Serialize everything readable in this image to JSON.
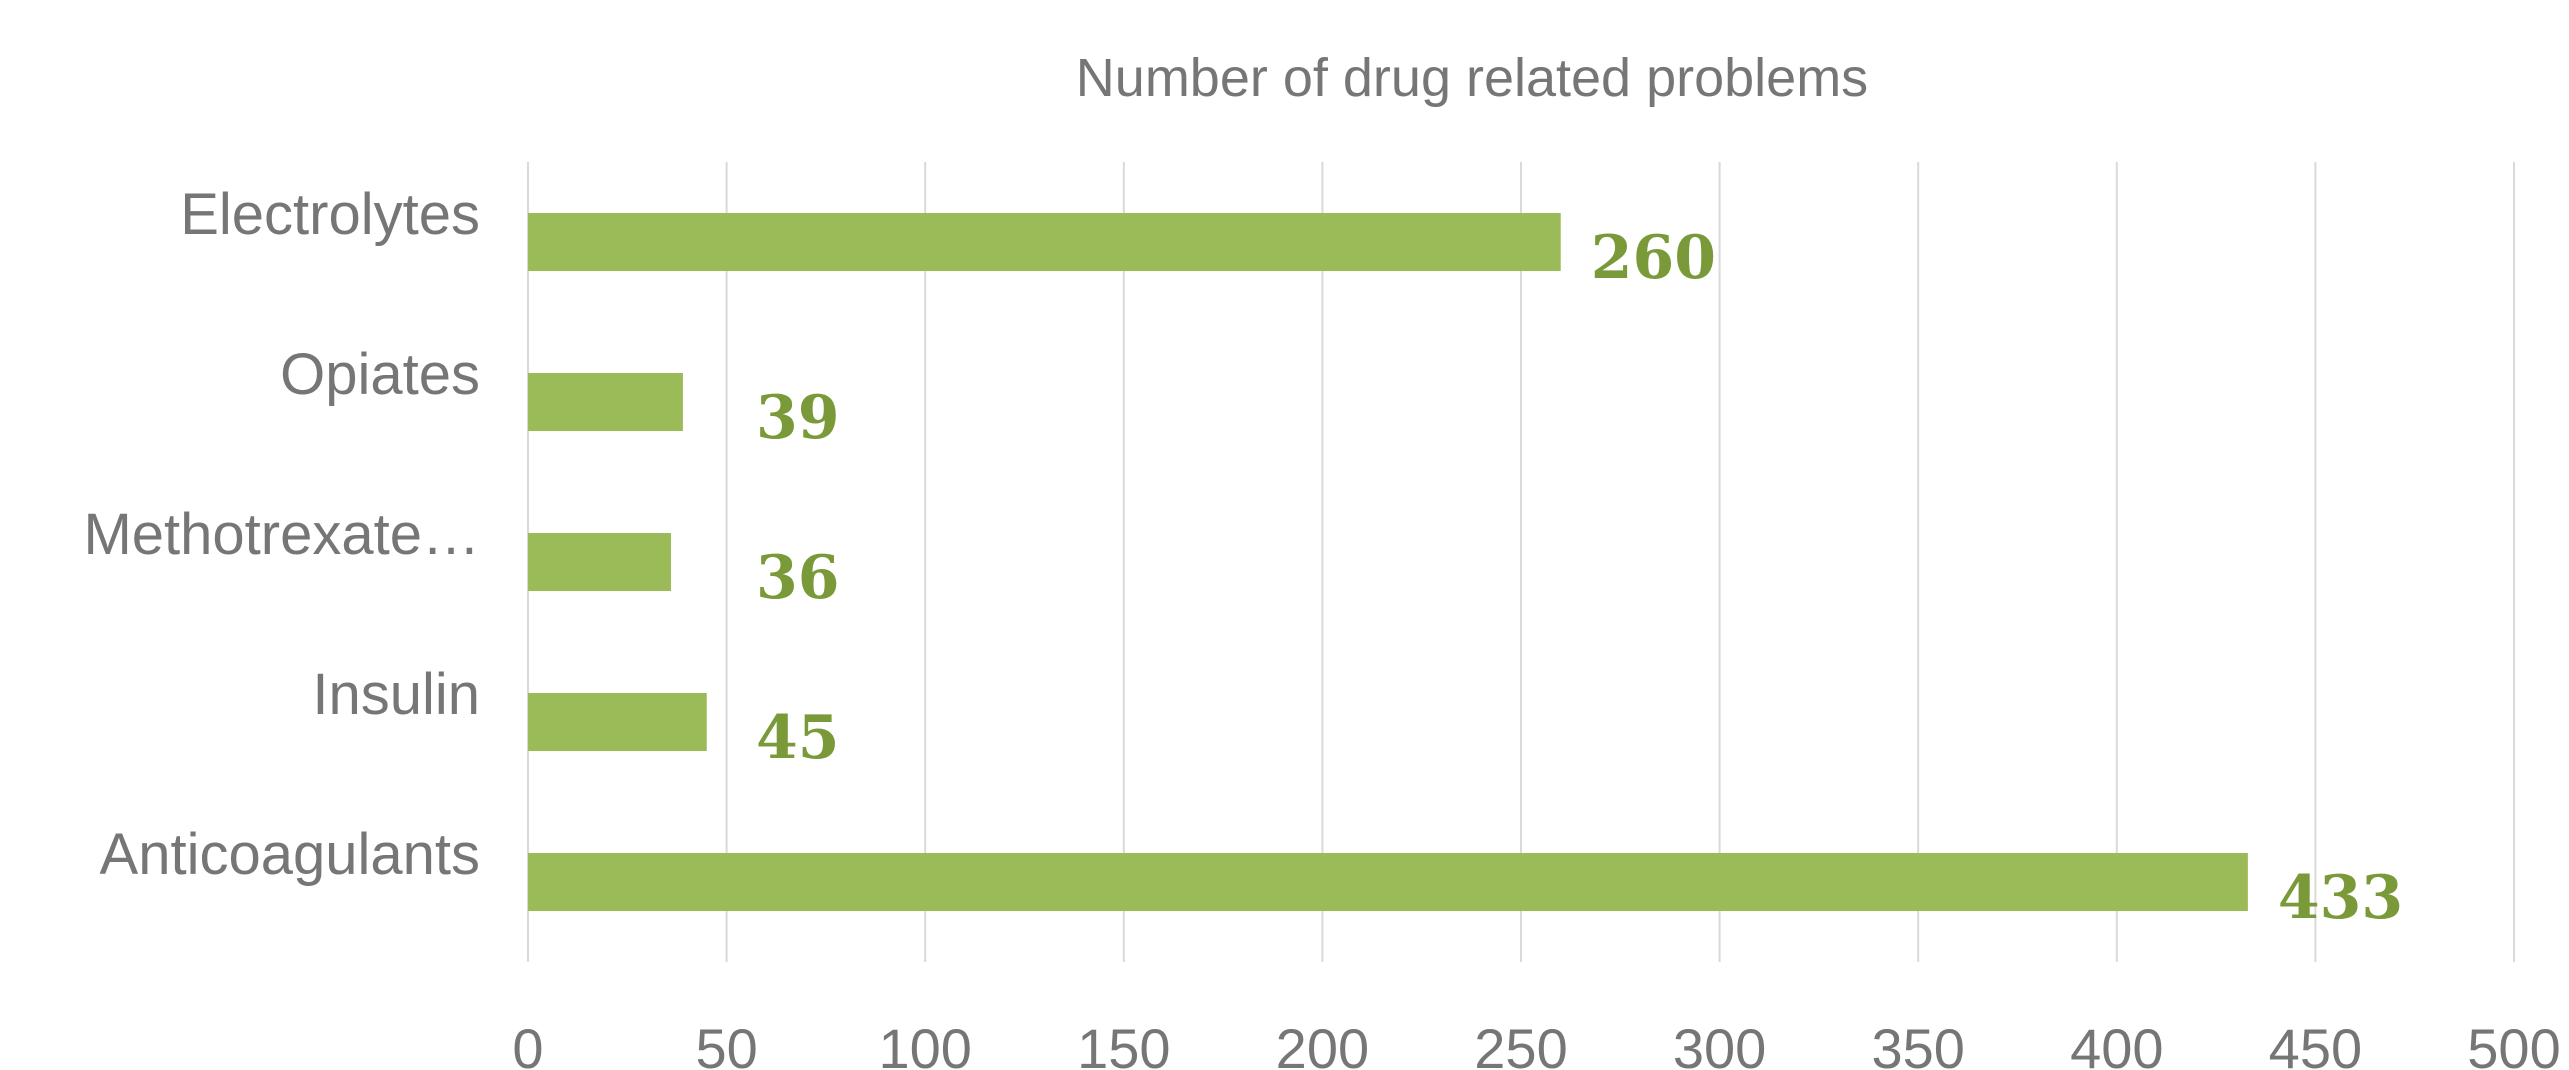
{
  "chart_data": {
    "type": "bar",
    "orientation": "horizontal",
    "title": "Number of drug related problems",
    "categories": [
      "Electrolytes",
      "Opiates",
      "Methotrexate…",
      "Insulin",
      "Anticoagulants"
    ],
    "values": [
      260,
      39,
      36,
      45,
      433
    ],
    "data_labels": [
      "260",
      "39",
      "36",
      "45",
      "433"
    ],
    "xlim": [
      0,
      500
    ],
    "xticks": [
      0,
      50,
      100,
      150,
      200,
      250,
      300,
      350,
      400,
      450,
      500
    ],
    "grid": true,
    "legend": "none",
    "colors": {
      "bar": "#9bbb59",
      "data_label": "#7a9a3a",
      "text": "#767676",
      "grid": "#d9d9d9"
    }
  }
}
